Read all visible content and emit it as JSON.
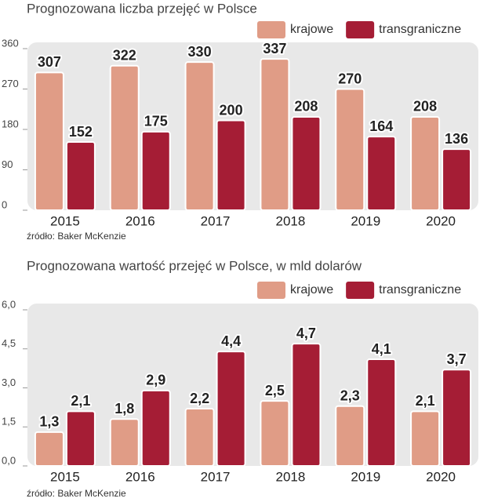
{
  "chart_data": [
    {
      "type": "bar",
      "title": "Prognozowana liczba przejęć w Polsce",
      "source": "źródło: Baker McKenzie",
      "categories": [
        "2015",
        "2016",
        "2017",
        "2018",
        "2019",
        "2020"
      ],
      "series": [
        {
          "name": "krajowe",
          "color": "#e09c86",
          "values": [
            307,
            322,
            330,
            337,
            270,
            208
          ]
        },
        {
          "name": "transgraniczne",
          "color": "#a51d35",
          "values": [
            152,
            175,
            200,
            208,
            164,
            136
          ]
        }
      ],
      "ylim": [
        0,
        360
      ],
      "yticks": [
        0,
        90,
        180,
        270,
        360
      ],
      "grid": false
    },
    {
      "type": "bar",
      "title": "Prognozowana wartość przejęć  w Polsce, w mld dolarów",
      "source": "źródło: Baker McKenzie",
      "categories": [
        "2015",
        "2016",
        "2017",
        "2018",
        "2019",
        "2020"
      ],
      "series": [
        {
          "name": "krajowe",
          "color": "#e09c86",
          "values": [
            1.3,
            1.8,
            2.2,
            2.5,
            2.3,
            2.1
          ],
          "value_labels": [
            "1,3",
            "1,8",
            "2,2",
            "2,5",
            "2,3",
            "2,1"
          ]
        },
        {
          "name": "transgraniczne",
          "color": "#a51d35",
          "values": [
            2.1,
            2.9,
            4.4,
            4.7,
            4.1,
            3.7
          ],
          "value_labels": [
            "2,1",
            "2,9",
            "4,4",
            "4,7",
            "4,1",
            "3,7"
          ]
        }
      ],
      "ylim": [
        0,
        6
      ],
      "yticks": [
        {
          "value": 0,
          "label": "0,0"
        },
        {
          "value": 1.5,
          "label": "1,5"
        },
        {
          "value": 3,
          "label": "3,0"
        },
        {
          "value": 4.5,
          "label": "4,5"
        },
        {
          "value": 6,
          "label": "6,0"
        }
      ],
      "grid": false
    }
  ]
}
